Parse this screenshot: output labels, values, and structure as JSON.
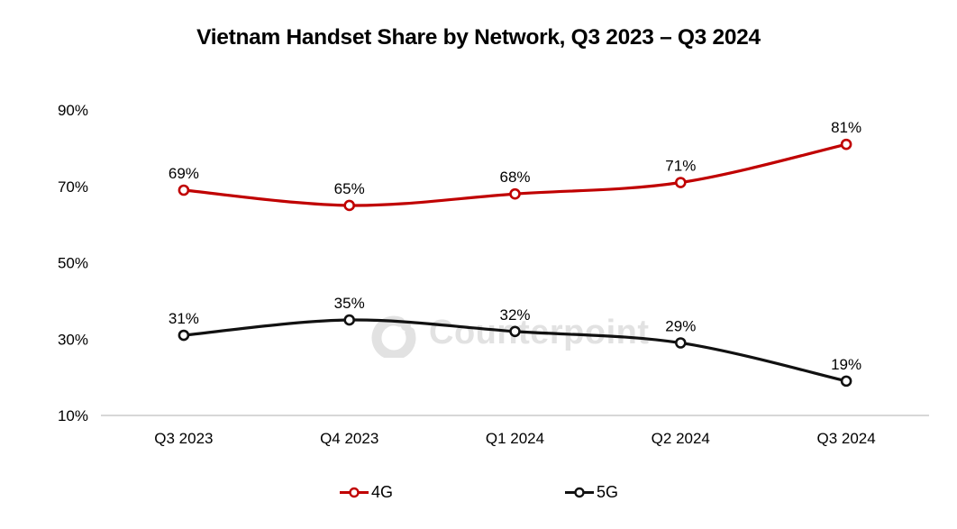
{
  "title": "Vietnam Handset Share by Network, Q3 2023 – Q3 2024",
  "watermark": {
    "text": "Counterpoint",
    "icon": "counterpoint-logo",
    "color": "#e2e2e2"
  },
  "colors": {
    "series_4g": "#C00000",
    "series_5g": "#111111",
    "axis_line": "#bfbfbf",
    "text": "#000000",
    "background": "#ffffff"
  },
  "chart_data": {
    "type": "line",
    "smooth": true,
    "title": "Vietnam Handset Share by Network, Q3 2023 – Q3 2024",
    "categories": [
      "Q3 2023",
      "Q4 2023",
      "Q1 2024",
      "Q2 2024",
      "Q3 2024"
    ],
    "series": [
      {
        "name": "4G",
        "color": "#C00000",
        "values": [
          69,
          65,
          68,
          71,
          81
        ],
        "labels": [
          "69%",
          "65%",
          "68%",
          "71%",
          "81%"
        ]
      },
      {
        "name": "5G",
        "color": "#111111",
        "values": [
          31,
          35,
          32,
          29,
          19
        ],
        "labels": [
          "31%",
          "35%",
          "32%",
          "29%",
          "19%"
        ]
      }
    ],
    "y_axis": {
      "min": 10,
      "max": 90,
      "ticks": [
        {
          "value": 90,
          "label": "90%"
        },
        {
          "value": 70,
          "label": "70%"
        },
        {
          "value": 50,
          "label": "50%"
        },
        {
          "value": 30,
          "label": "30%"
        },
        {
          "value": 10,
          "label": "10%"
        }
      ]
    },
    "grid": false,
    "legend_position": "bottom",
    "data_labels": "above"
  }
}
